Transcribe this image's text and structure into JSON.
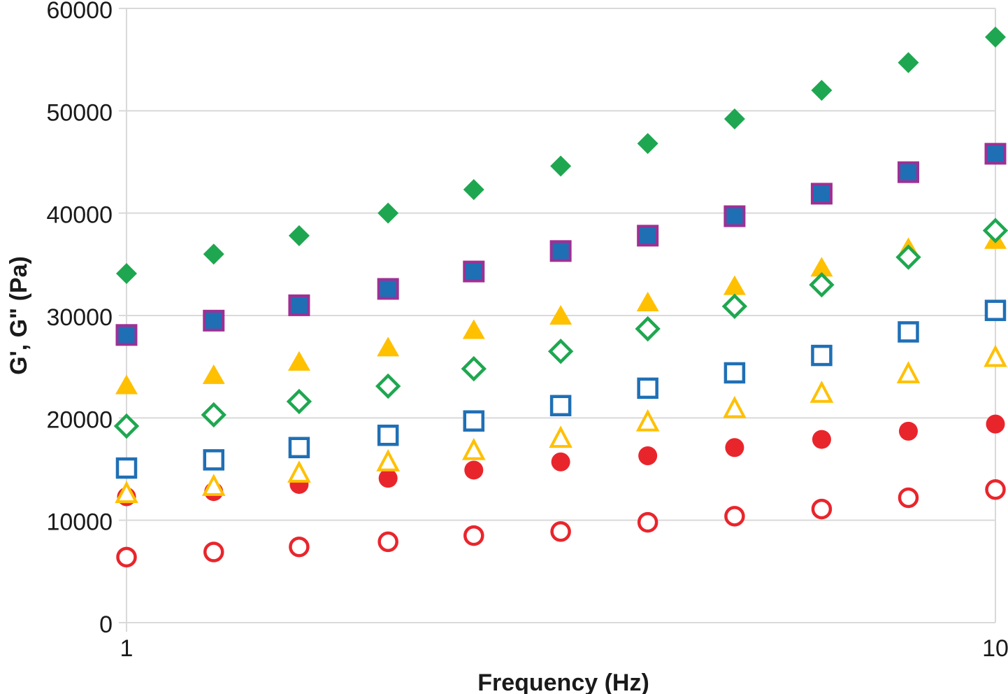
{
  "chart_data": {
    "type": "scatter",
    "title": "",
    "xlabel": "Frequency (Hz)",
    "ylabel": "G', G\" (Pa)",
    "legend": "none",
    "grid": "horizontal",
    "x_axis": {
      "scale": "log",
      "min": 1,
      "max": 10,
      "tick_values": [
        1,
        10
      ],
      "tick_labels": [
        "1",
        "10"
      ]
    },
    "y_axis": {
      "min": 0,
      "max": 60000,
      "tick_step": 10000,
      "tick_labels": [
        "0",
        "10000",
        "20000",
        "30000",
        "40000",
        "50000",
        "60000"
      ]
    },
    "x": [
      1,
      1.26,
      1.58,
      2,
      2.51,
      3.16,
      3.98,
      5.01,
      6.31,
      7.94,
      10
    ],
    "series": [
      {
        "id": "filled-diamond-green",
        "name": "filled green diamonds (top series)",
        "marker": "diamond",
        "variant": "filled",
        "color": "#1EA750",
        "values": [
          34100,
          36000,
          37800,
          40000,
          42300,
          44600,
          46800,
          49200,
          52000,
          54700,
          57200
        ]
      },
      {
        "id": "filled-square-blue",
        "name": "filled blue squares with purple border",
        "marker": "square",
        "variant": "filled",
        "color": "#1F6FB5",
        "border": "#9E3094",
        "values": [
          28100,
          29500,
          31000,
          32600,
          34300,
          36300,
          37800,
          39700,
          41900,
          44000,
          45800
        ]
      },
      {
        "id": "filled-triangle-yellow",
        "name": "filled yellow triangles",
        "marker": "triangle",
        "variant": "filled",
        "color": "#FFC000",
        "values": [
          23200,
          24200,
          25500,
          26900,
          28600,
          30000,
          31300,
          32900,
          34700,
          36600,
          37400
        ]
      },
      {
        "id": "open-diamond-green",
        "name": "open green diamonds",
        "marker": "diamond",
        "variant": "open",
        "color": "#1EA750",
        "values": [
          19200,
          20300,
          21600,
          23100,
          24800,
          26500,
          28700,
          30900,
          33000,
          35700,
          38300
        ]
      },
      {
        "id": "open-square-blue",
        "name": "open blue squares",
        "marker": "square",
        "variant": "open",
        "color": "#1F6FB5",
        "values": [
          15100,
          15900,
          17100,
          18300,
          19700,
          21200,
          22900,
          24400,
          26100,
          28400,
          30500
        ]
      },
      {
        "id": "filled-circle-red",
        "name": "filled red circles",
        "marker": "circle",
        "variant": "filled",
        "color": "#E9252C",
        "values": [
          12300,
          12800,
          13500,
          14100,
          14900,
          15700,
          16300,
          17100,
          17900,
          18700,
          19400
        ]
      },
      {
        "id": "open-triangle-yellow",
        "name": "open yellow triangles",
        "marker": "triangle",
        "variant": "open",
        "color": "#FFC000",
        "values": [
          12600,
          13300,
          14600,
          15700,
          16800,
          18000,
          19600,
          20900,
          22400,
          24300,
          25900
        ]
      },
      {
        "id": "open-circle-red",
        "name": "open red circles (bottom series)",
        "marker": "circle",
        "variant": "open",
        "color": "#E9252C",
        "values": [
          6400,
          6900,
          7400,
          7900,
          8500,
          8900,
          9800,
          10400,
          11100,
          12200,
          13000
        ]
      }
    ],
    "colors": {
      "grid": "#D9D9D9",
      "text": "#1A1A1A",
      "background": "#FFFFFF"
    }
  }
}
